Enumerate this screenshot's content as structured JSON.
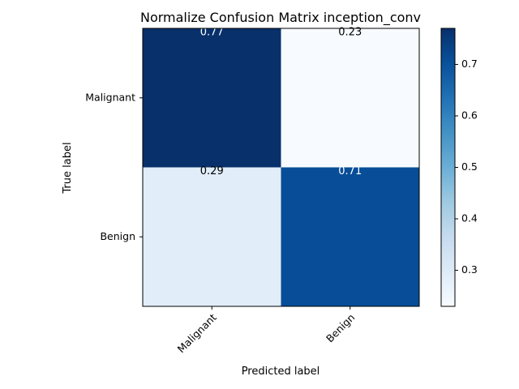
{
  "chart_data": {
    "type": "heatmap",
    "title": "Normalize Confusion Matrix inception_conv",
    "xlabel": "Predicted label",
    "ylabel": "True label",
    "x_categories": [
      "Malignant",
      "Benign"
    ],
    "y_categories": [
      "Malignant",
      "Benign"
    ],
    "values": [
      [
        0.77,
        0.23
      ],
      [
        0.29,
        0.71
      ]
    ],
    "value_labels": [
      [
        "0.77",
        "0.23"
      ],
      [
        "0.29",
        "0.71"
      ]
    ],
    "colormap": "Blues",
    "colorbar": {
      "range": [
        0.23,
        0.77
      ],
      "ticks": [
        0.3,
        0.4,
        0.5,
        0.6,
        0.7
      ],
      "tick_labels": [
        "0.3",
        "0.4",
        "0.5",
        "0.6",
        "0.7"
      ]
    },
    "x_tick_rotation_deg": 45,
    "grid": false
  }
}
